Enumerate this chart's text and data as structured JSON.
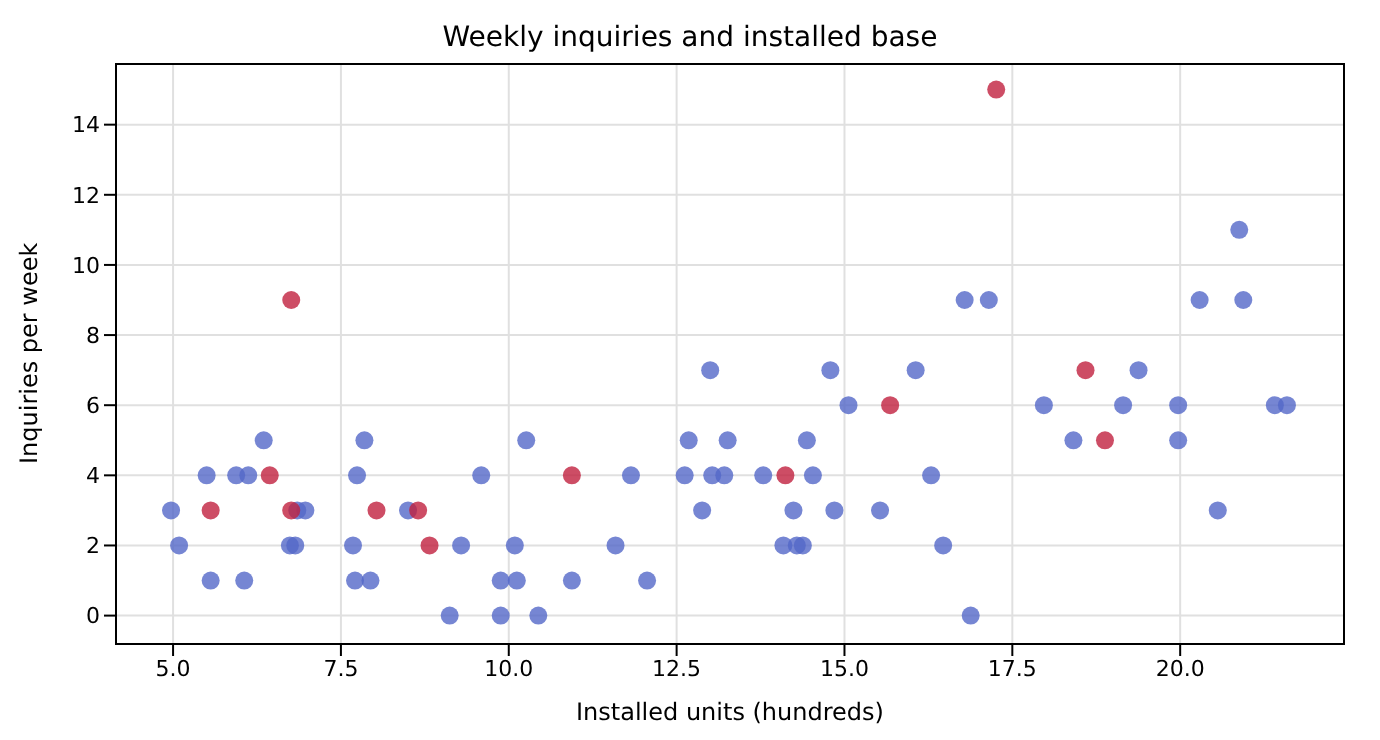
{
  "chart_data": {
    "type": "scatter",
    "title": "Weekly inquiries and installed base",
    "xlabel": "Installed units (hundreds)",
    "ylabel": "Inquiries per week",
    "xlim": [
      4.15,
      22.44
    ],
    "ylim": [
      -0.81,
      15.73
    ],
    "xticks": [
      {
        "value": 5,
        "label": "5.0"
      },
      7.5,
      {
        "value": 10,
        "label": "10.0"
      },
      12.5,
      {
        "value": 15,
        "label": "15.0"
      },
      17.5,
      {
        "value": 20,
        "label": "20.0"
      }
    ],
    "yticks": [
      0,
      2,
      4,
      6,
      8,
      10,
      12,
      14
    ],
    "grid": true,
    "marker": "circle",
    "legend": false,
    "series": [
      {
        "color": "#5468c8",
        "x": [
          4.97,
          5.09,
          5.5,
          5.56,
          5.94,
          6.06,
          6.12,
          6.35,
          6.74,
          6.82,
          6.85,
          6.97,
          7.68,
          7.74,
          7.71,
          7.85,
          7.94,
          8.5,
          9.12,
          9.29,
          9.59,
          9.88,
          9.88,
          10.09,
          10.12,
          10.26,
          10.44,
          10.94,
          11.59,
          11.82,
          12.06,
          12.62,
          12.68,
          12.88,
          13.0,
          13.03,
          13.21,
          13.26,
          13.79,
          14.09,
          14.24,
          14.29,
          14.38,
          14.44,
          14.53,
          14.79,
          14.85,
          15.06,
          15.53,
          16.06,
          16.29,
          16.47,
          16.79,
          16.88,
          17.15,
          17.97,
          18.41,
          19.15,
          19.38,
          19.97,
          19.97,
          20.29,
          20.56,
          20.88,
          20.94,
          21.41,
          21.59
        ],
        "values": [
          3,
          2,
          4,
          1,
          4,
          1,
          4,
          5,
          2,
          2,
          3,
          3,
          2,
          4,
          1,
          5,
          1,
          3,
          0,
          2,
          4,
          0,
          1,
          2,
          1,
          5,
          0,
          1,
          2,
          4,
          1,
          4,
          5,
          3,
          7,
          4,
          4,
          5,
          4,
          2,
          3,
          2,
          2,
          5,
          4,
          7,
          3,
          6,
          3,
          7,
          4,
          2,
          9,
          0,
          9,
          6,
          5,
          6,
          7,
          6,
          5,
          9,
          3,
          11,
          9,
          6,
          6
        ]
      },
      {
        "color": "#c0203f",
        "x": [
          5.56,
          6.44,
          6.76,
          6.76,
          8.03,
          8.65,
          8.82,
          10.94,
          14.12,
          15.68,
          17.26,
          18.59,
          18.88
        ],
        "values": [
          3,
          4,
          9,
          3,
          3,
          3,
          2,
          4,
          4,
          6,
          15,
          7,
          5
        ]
      }
    ]
  }
}
